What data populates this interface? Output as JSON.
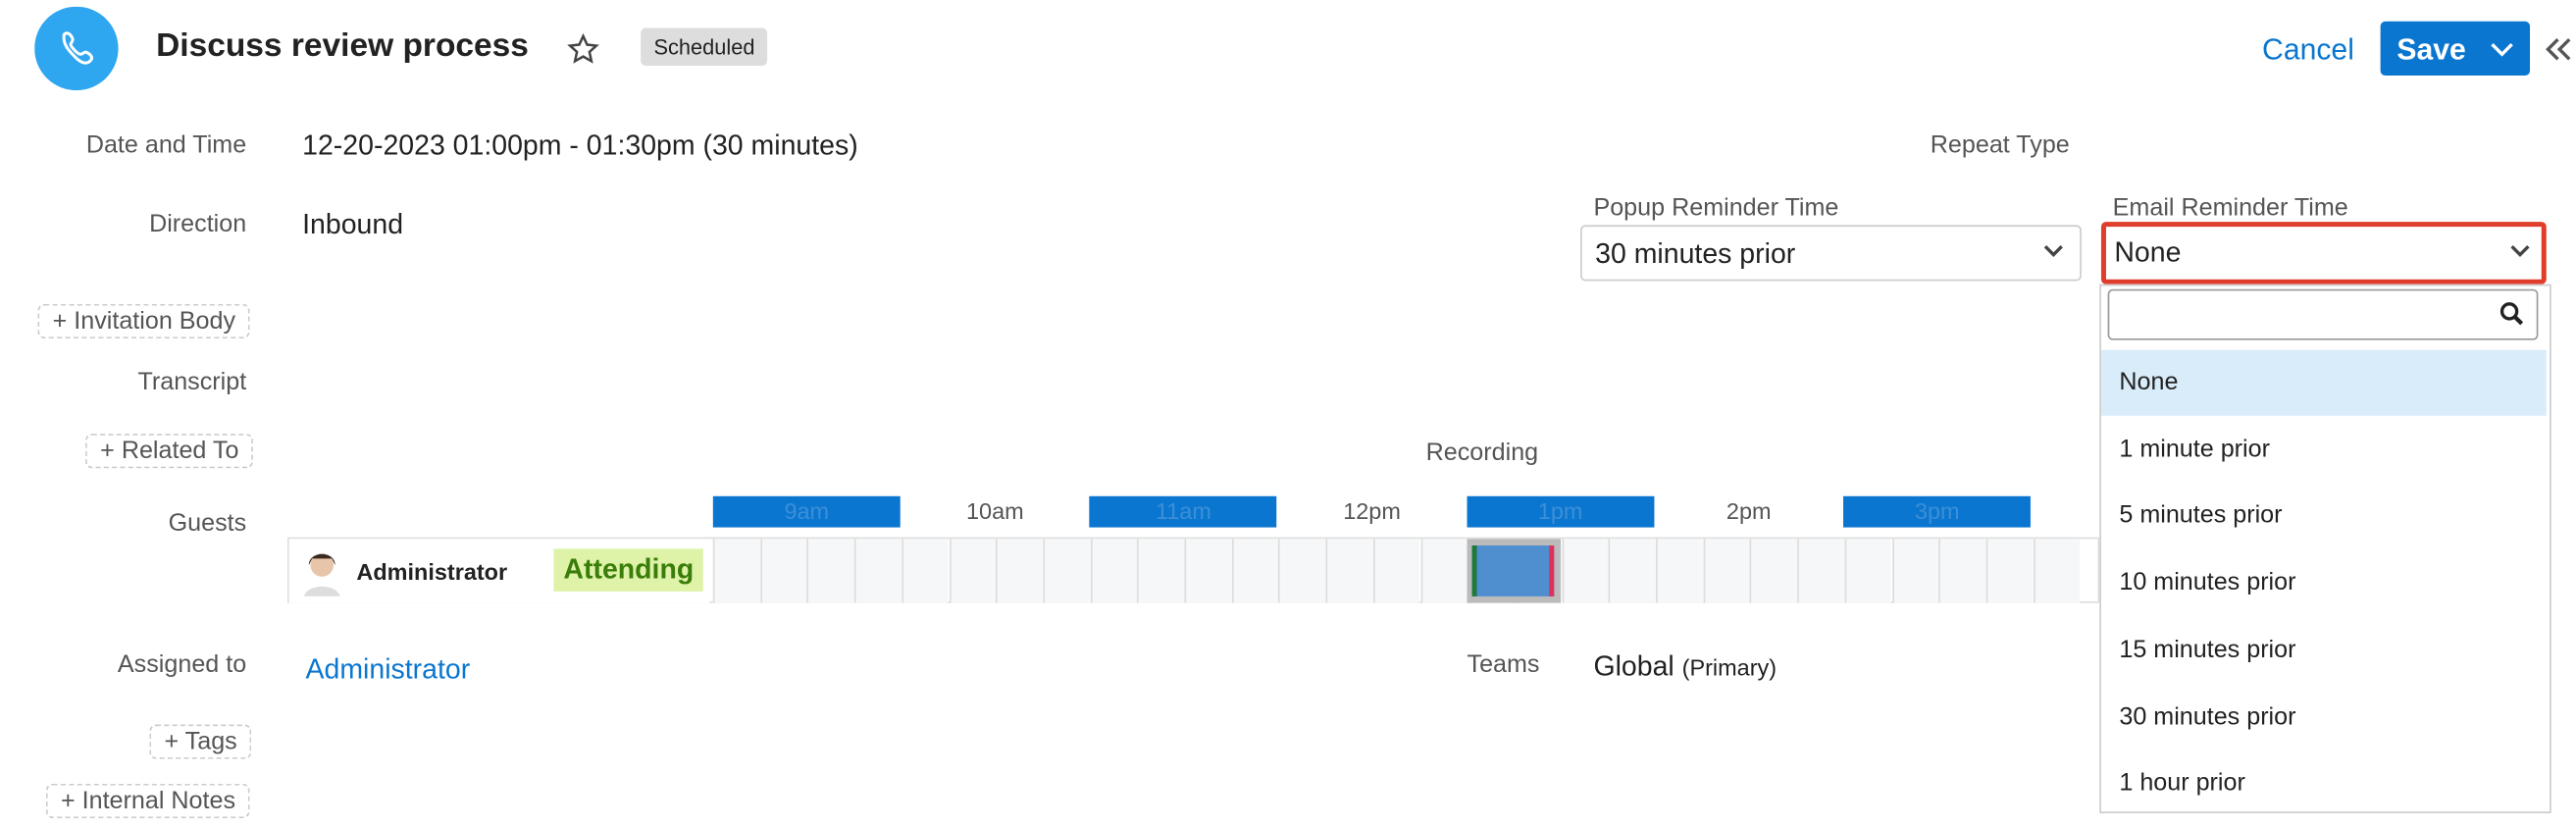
{
  "header": {
    "title": "Discuss review process",
    "status": "Scheduled",
    "cancel": "Cancel",
    "save": "Save"
  },
  "fields": {
    "date_label": "Date and Time",
    "date_value": "12-20-2023 01:00pm - 01:30pm (30 minutes)",
    "repeat_label": "Repeat Type",
    "direction_label": "Direction",
    "direction_value": "Inbound",
    "popup_label": "Popup Reminder Time",
    "popup_value": "30 minutes prior",
    "email_label": "Email Reminder Time",
    "email_value": "None",
    "invitation_body": "Invitation Body",
    "transcript_label": "Transcript",
    "related_to": "Related To",
    "recording_label": "Recording",
    "guests_label": "Guests",
    "assigned_label": "Assigned to",
    "assigned_value": "Administrator",
    "teams_label": "Teams",
    "teams_value": "Global",
    "teams_note": "(Primary)",
    "tags": "Tags",
    "internal_notes": "Internal Notes"
  },
  "timeline": {
    "hours": [
      "9am",
      "10am",
      "11am",
      "12pm",
      "1pm",
      "2pm",
      "3pm"
    ],
    "guest": "Administrator",
    "guest_status": "Attending"
  },
  "dropdown": {
    "options": [
      "None",
      "1 minute prior",
      "5 minutes prior",
      "10 minutes prior",
      "15 minutes prior",
      "30 minutes prior",
      "1 hour prior"
    ]
  }
}
